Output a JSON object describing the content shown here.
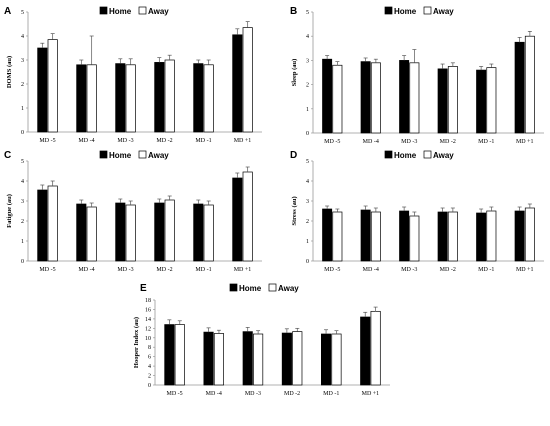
{
  "colors": {
    "home": "#000000",
    "away": "#ffffff",
    "stroke": "#000000",
    "axis": "#999999",
    "error": "#555555"
  },
  "chart_data": [
    {
      "panel": "A",
      "type": "bar",
      "ylabel": "DOMS (au)",
      "ylim": [
        0,
        5
      ],
      "yticks": [
        "0",
        "1",
        "2",
        "3",
        "4",
        "5"
      ],
      "categories": [
        "MD -5",
        "MD -4",
        "MD -3",
        "MD -2",
        "MD -1",
        "MD +1"
      ],
      "series": [
        {
          "name": "Home",
          "values": [
            3.5,
            2.8,
            2.85,
            2.9,
            2.85,
            4.05
          ],
          "errors": [
            0.2,
            0.2,
            0.2,
            0.2,
            0.15,
            0.25
          ]
        },
        {
          "name": "Away",
          "values": [
            3.85,
            2.8,
            2.8,
            3.0,
            2.8,
            4.35
          ],
          "errors": [
            0.25,
            1.2,
            0.25,
            0.2,
            0.2,
            0.25
          ]
        }
      ]
    },
    {
      "panel": "B",
      "type": "bar",
      "ylabel": "Sleep (au)",
      "ylim": [
        0,
        5
      ],
      "yticks": [
        "0",
        "1",
        "2",
        "3",
        "4",
        "5"
      ],
      "categories": [
        "MD -5",
        "MD -4",
        "MD -3",
        "MD -2",
        "MD -1",
        "MD +1"
      ],
      "series": [
        {
          "name": "Home",
          "values": [
            3.05,
            2.95,
            3.0,
            2.65,
            2.6,
            3.75
          ],
          "errors": [
            0.15,
            0.15,
            0.2,
            0.2,
            0.15,
            0.2
          ]
        },
        {
          "name": "Away",
          "values": [
            2.8,
            2.9,
            2.9,
            2.75,
            2.7,
            4.0
          ],
          "errors": [
            0.15,
            0.15,
            0.55,
            0.15,
            0.15,
            0.2
          ]
        }
      ]
    },
    {
      "panel": "C",
      "type": "bar",
      "ylabel": "Fatigue (au)",
      "ylim": [
        0,
        5
      ],
      "yticks": [
        "0",
        "1",
        "2",
        "3",
        "4",
        "5"
      ],
      "categories": [
        "MD -5",
        "MD -4",
        "MD -3",
        "MD -2",
        "MD -1",
        "MD +1"
      ],
      "series": [
        {
          "name": "Home",
          "values": [
            3.55,
            2.85,
            2.9,
            2.9,
            2.85,
            4.15
          ],
          "errors": [
            0.25,
            0.2,
            0.2,
            0.2,
            0.2,
            0.25
          ]
        },
        {
          "name": "Away",
          "values": [
            3.75,
            2.7,
            2.8,
            3.05,
            2.8,
            4.45
          ],
          "errors": [
            0.25,
            0.2,
            0.2,
            0.2,
            0.2,
            0.25
          ]
        }
      ]
    },
    {
      "panel": "D",
      "type": "bar",
      "ylabel": "Stress (au)",
      "ylim": [
        0,
        5
      ],
      "yticks": [
        "0",
        "1",
        "2",
        "3",
        "4",
        "5"
      ],
      "categories": [
        "MD -5",
        "MD -4",
        "MD -3",
        "MD -2",
        "MD -1",
        "MD +1"
      ],
      "series": [
        {
          "name": "Home",
          "values": [
            2.6,
            2.55,
            2.5,
            2.45,
            2.4,
            2.5
          ],
          "errors": [
            0.15,
            0.2,
            0.2,
            0.2,
            0.2,
            0.2
          ]
        },
        {
          "name": "Away",
          "values": [
            2.45,
            2.45,
            2.25,
            2.45,
            2.5,
            2.65
          ],
          "errors": [
            0.15,
            0.2,
            0.2,
            0.2,
            0.2,
            0.2
          ]
        }
      ]
    },
    {
      "panel": "E",
      "type": "bar",
      "ylabel": "Hooper Index (au)",
      "ylim": [
        0,
        18
      ],
      "yticks": [
        "0",
        "2",
        "4",
        "6",
        "8",
        "10",
        "12",
        "14",
        "16",
        "18"
      ],
      "categories": [
        "MD -5",
        "MD -4",
        "MD -3",
        "MD -2",
        "MD -1",
        "MD +1"
      ],
      "series": [
        {
          "name": "Home",
          "values": [
            12.8,
            11.2,
            11.3,
            11.0,
            10.8,
            14.4
          ],
          "errors": [
            1.0,
            0.9,
            0.9,
            0.9,
            0.9,
            1.0
          ]
        },
        {
          "name": "Away",
          "values": [
            12.8,
            10.9,
            10.8,
            11.3,
            10.8,
            15.6
          ],
          "errors": [
            0.8,
            0.7,
            0.7,
            0.7,
            0.7,
            0.9
          ]
        }
      ]
    }
  ]
}
